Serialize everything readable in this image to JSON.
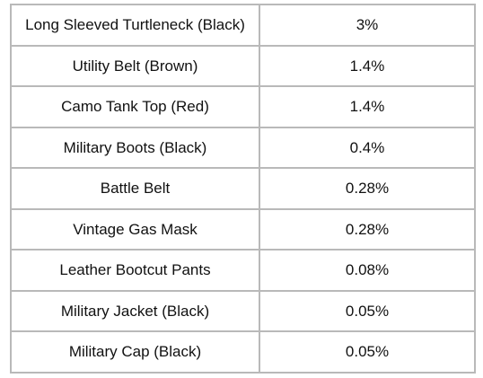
{
  "table": {
    "rows": [
      {
        "item": "Long Sleeved Turtleneck (Black)",
        "rate": "3%"
      },
      {
        "item": "Utility Belt (Brown)",
        "rate": "1.4%"
      },
      {
        "item": "Camo Tank Top (Red)",
        "rate": "1.4%"
      },
      {
        "item": "Military Boots (Black)",
        "rate": "0.4%"
      },
      {
        "item": "Battle Belt",
        "rate": "0.28%"
      },
      {
        "item": "Vintage Gas Mask",
        "rate": "0.28%"
      },
      {
        "item": "Leather Bootcut Pants",
        "rate": "0.08%"
      },
      {
        "item": "Military Jacket (Black)",
        "rate": "0.05%"
      },
      {
        "item": "Military Cap (Black)",
        "rate": "0.05%"
      }
    ]
  }
}
